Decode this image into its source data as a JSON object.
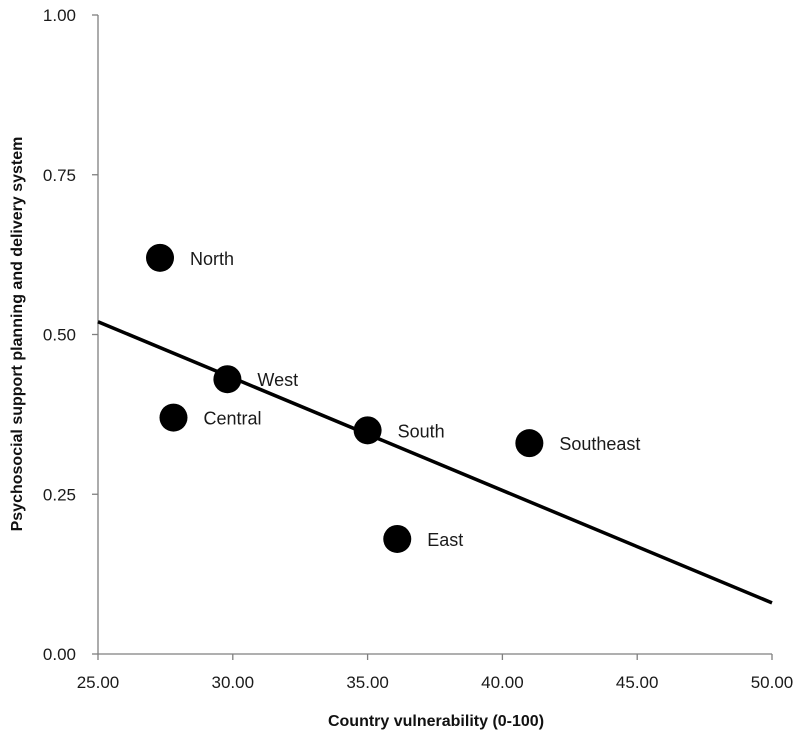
{
  "chart_data": {
    "type": "scatter",
    "title": "",
    "xlabel": "Country vulnerability (0-100)",
    "ylabel": "Psychosocial support planning and delivery system",
    "xlim": [
      25,
      50
    ],
    "ylim": [
      0,
      1
    ],
    "x_ticks": [
      25,
      30,
      35,
      40,
      45,
      50
    ],
    "x_tick_labels": [
      "25.00",
      "30.00",
      "35.00",
      "40.00",
      "45.00",
      "50.00"
    ],
    "y_ticks": [
      0,
      0.25,
      0.5,
      0.75,
      1
    ],
    "y_tick_labels": [
      "0.00",
      "0.25",
      "0.50",
      "0.75",
      "1.00"
    ],
    "points": [
      {
        "label": "North",
        "x": 27.3,
        "y": 0.62
      },
      {
        "label": "West",
        "x": 29.8,
        "y": 0.43
      },
      {
        "label": "Central",
        "x": 27.8,
        "y": 0.37
      },
      {
        "label": "South",
        "x": 35.0,
        "y": 0.35
      },
      {
        "label": "Southeast",
        "x": 41.0,
        "y": 0.33
      },
      {
        "label": "East",
        "x": 36.1,
        "y": 0.18
      }
    ],
    "trendline": {
      "x": [
        25,
        50
      ],
      "y": [
        0.52,
        0.08
      ]
    },
    "grid": false,
    "legend": "none",
    "colors": {
      "marker": "#000000",
      "line": "#000000",
      "axis": "#7f7f7f"
    }
  }
}
